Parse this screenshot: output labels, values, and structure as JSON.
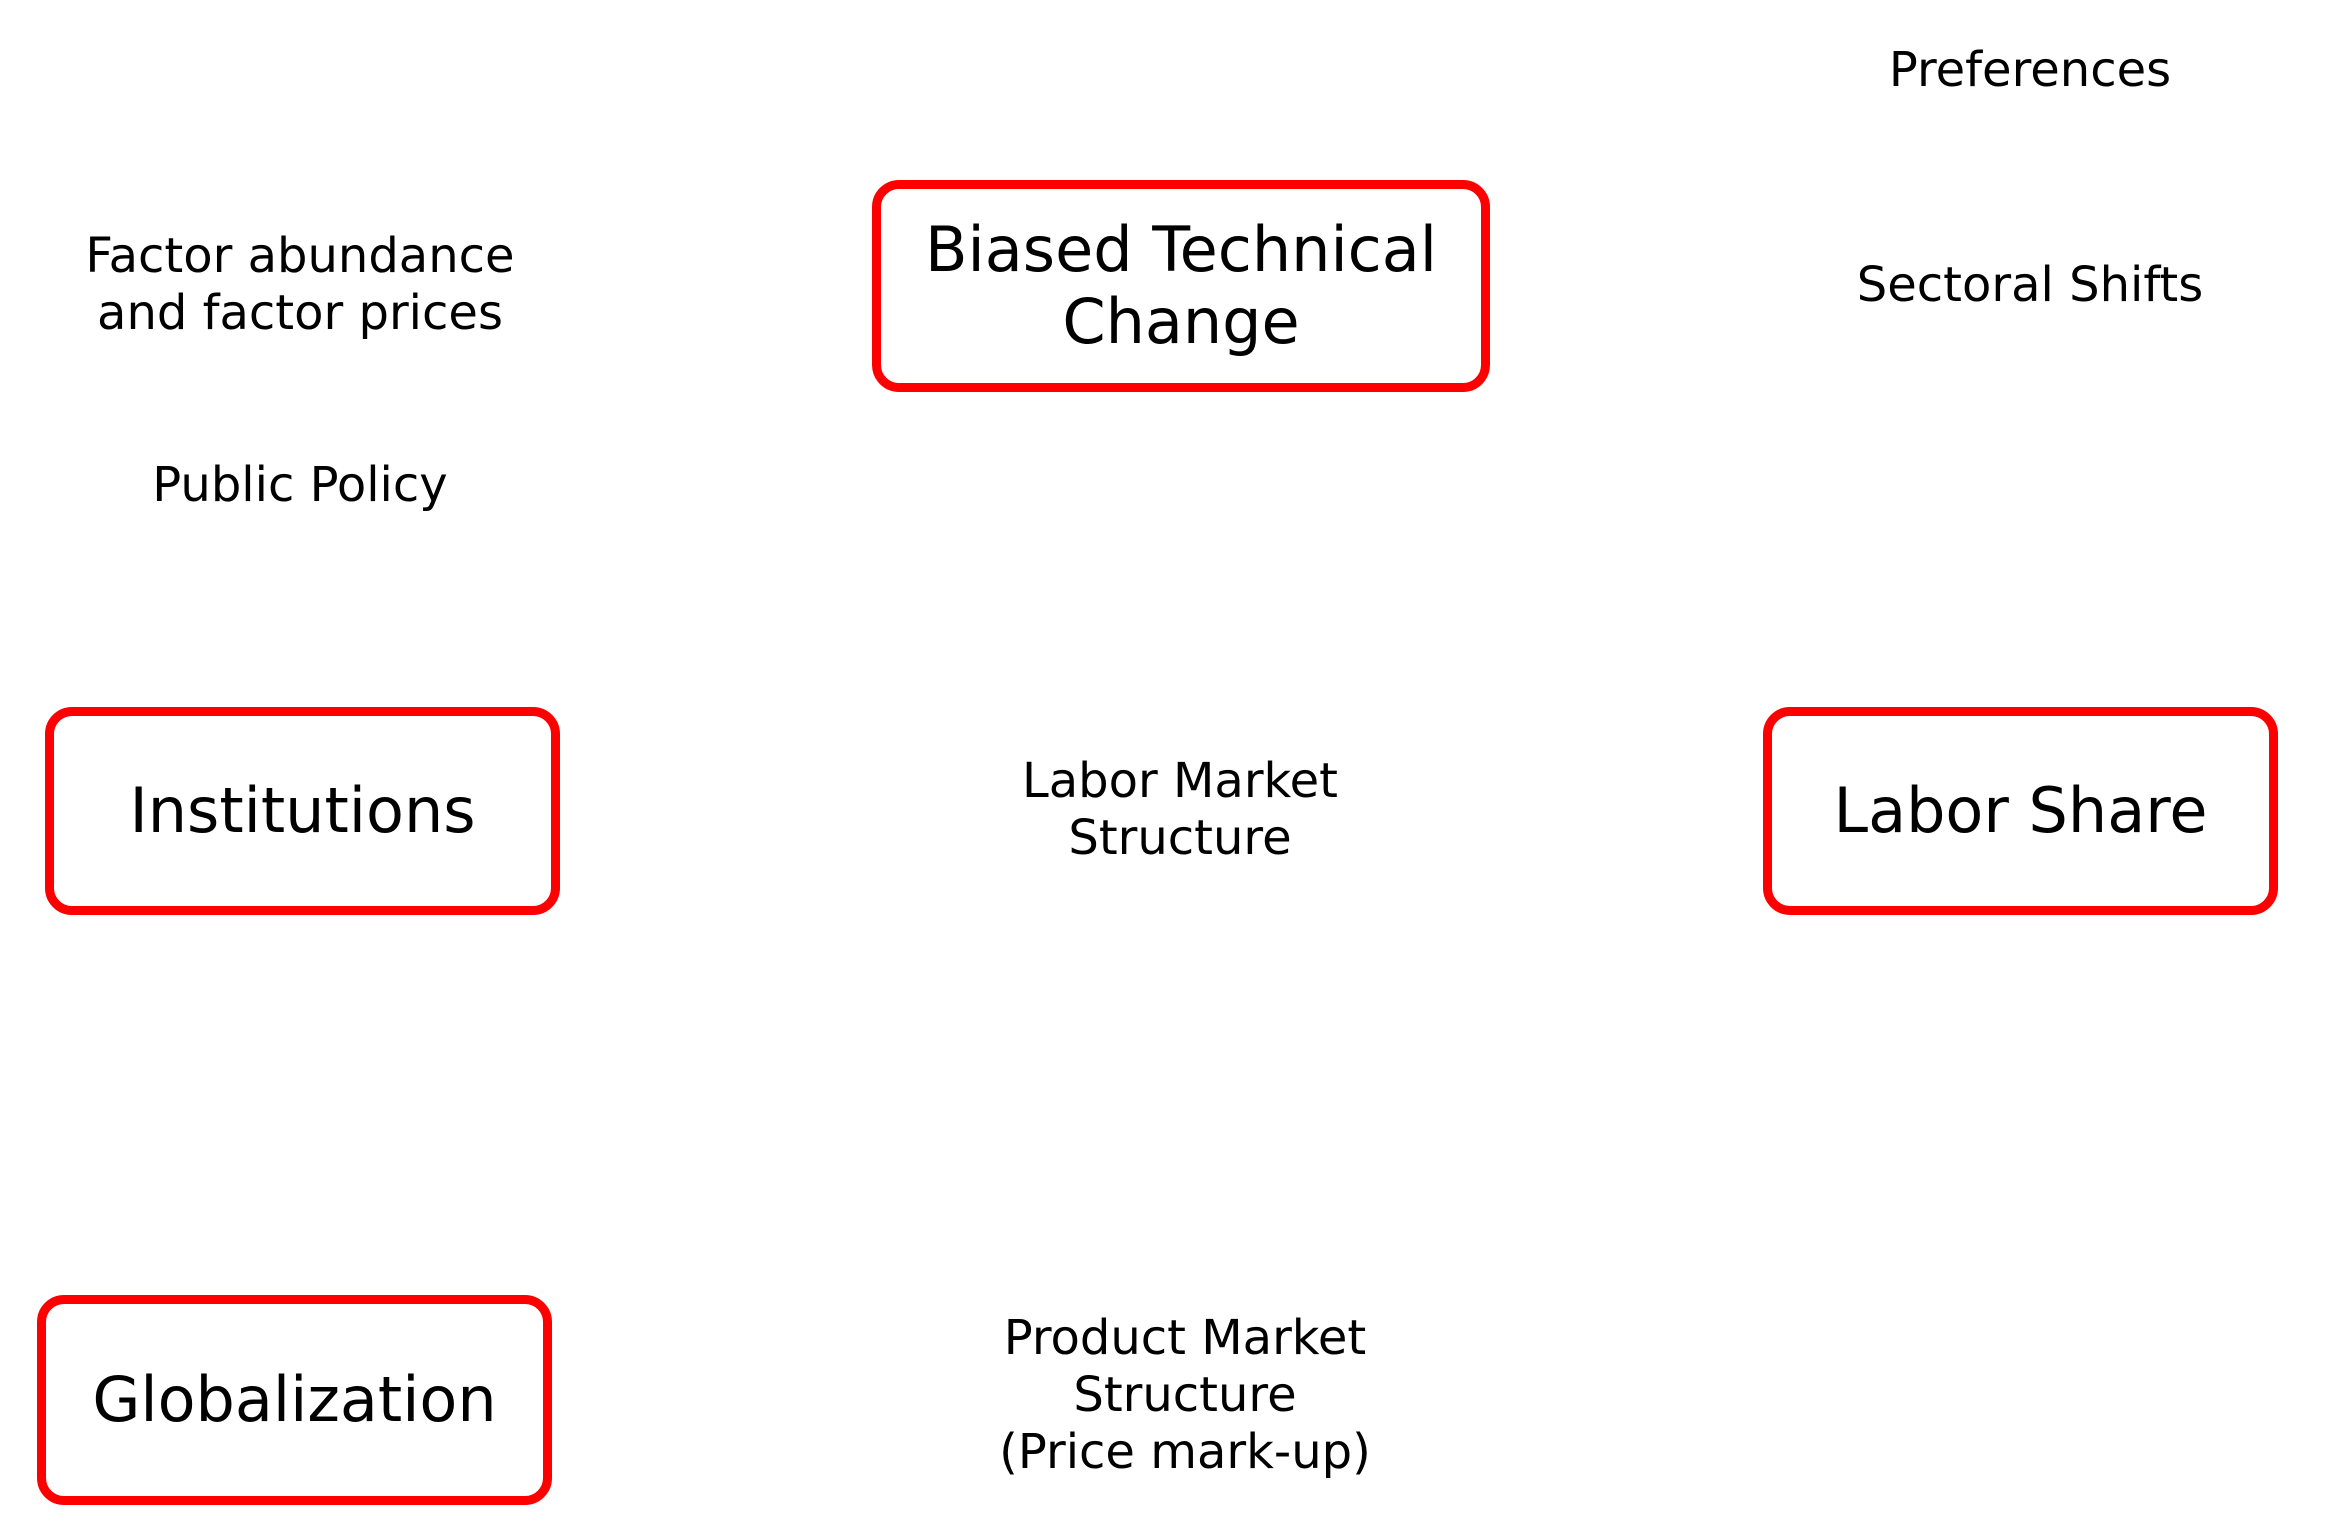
{
  "accent_color": "#ff0000",
  "boxed_factors": [
    {
      "id": "n-btc",
      "name": "biased-technical-change-box",
      "text": "Biased Technical\nChange"
    },
    {
      "id": "n-inst",
      "name": "institutions-box",
      "text": "Institutions"
    },
    {
      "id": "n-labor",
      "name": "labor-share-box",
      "text": "Labor Share"
    },
    {
      "id": "n-glob",
      "name": "globalization-box",
      "text": "Globalization"
    }
  ],
  "plain_labels": [
    {
      "id": "t-pref",
      "name": "preferences-label",
      "text": "Preferences"
    },
    {
      "id": "t-sect",
      "name": "sectoral-shifts-label",
      "text": "Sectoral Shifts"
    },
    {
      "id": "t-factor",
      "name": "factor-abundance-label",
      "text": "Factor abundance\nand factor prices"
    },
    {
      "id": "t-policy",
      "name": "public-policy-label",
      "text": "Public Policy"
    },
    {
      "id": "t-lms",
      "name": "labor-market-structure-label",
      "text": "Labor Market\nStructure"
    },
    {
      "id": "t-pms",
      "name": "product-market-structure-label",
      "text": "Product Market\nStructure\n(Price mark-up)"
    }
  ]
}
